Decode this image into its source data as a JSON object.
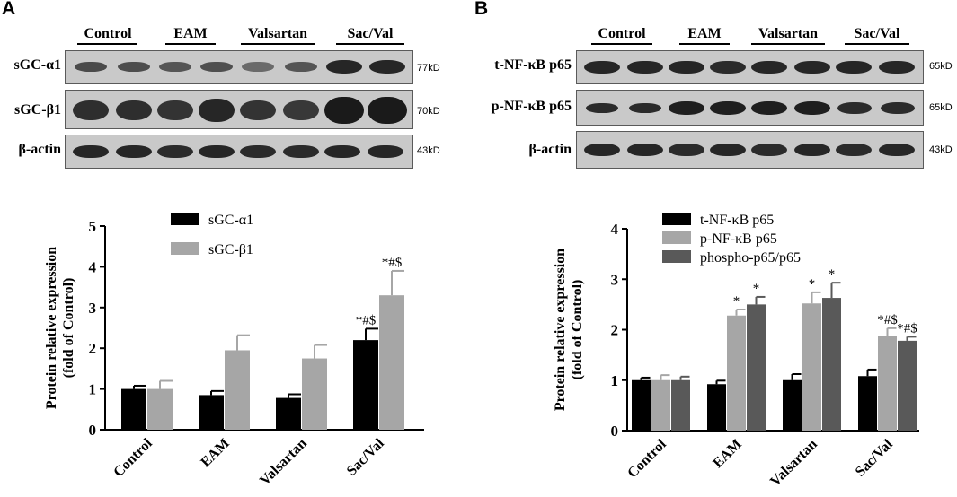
{
  "panels": [
    {
      "letter": "A",
      "blot": {
        "groups": [
          "Control",
          "EAM",
          "Valsartan",
          "Sac/Val"
        ],
        "rows": [
          {
            "label": "sGC-α1",
            "kd": "77kD"
          },
          {
            "label": "sGC-β1",
            "kd": "70kD"
          },
          {
            "label": "β-actin",
            "kd": "43kD"
          }
        ]
      }
    },
    {
      "letter": "B",
      "blot": {
        "groups": [
          "Control",
          "EAM",
          "Valsartan",
          "Sac/Val"
        ],
        "rows": [
          {
            "label": "t-NF-κB p65",
            "kd": "65kD"
          },
          {
            "label": "p-NF-κB p65",
            "kd": "65kD"
          },
          {
            "label": "β-actin",
            "kd": "43kD"
          }
        ]
      }
    }
  ],
  "chart_data": [
    {
      "type": "bar",
      "categories": [
        "Control",
        "EAM",
        "Valsartan",
        "Sac/Val"
      ],
      "ylabel": "Protein relative expression (fold of Control)",
      "ylim": [
        0,
        5
      ],
      "yticks": [
        0,
        1,
        2,
        3,
        4,
        5
      ],
      "legend_position": "top-left",
      "series": [
        {
          "name": "sGC-α1",
          "color": "#000000",
          "values": [
            1.0,
            0.85,
            0.78,
            2.2
          ],
          "errors": [
            0.08,
            0.1,
            0.09,
            0.28
          ],
          "annotations": [
            "",
            "",
            "",
            "*#$"
          ]
        },
        {
          "name": "sGC-β1",
          "color": "#a6a6a6",
          "values": [
            1.0,
            1.95,
            1.75,
            3.3
          ],
          "errors": [
            0.2,
            0.37,
            0.33,
            0.6
          ],
          "annotations": [
            "",
            "",
            "",
            "*#$"
          ]
        }
      ]
    },
    {
      "type": "bar",
      "categories": [
        "Control",
        "EAM",
        "Valsartan",
        "Sac/Val"
      ],
      "ylabel": "Protein relative expression (fold of Control)",
      "ylim": [
        0,
        4
      ],
      "yticks": [
        0,
        1,
        2,
        3,
        4
      ],
      "legend_position": "top-left",
      "series": [
        {
          "name": "t-NF-κB p65",
          "color": "#000000",
          "values": [
            1.0,
            0.92,
            1.0,
            1.08
          ],
          "errors": [
            0.05,
            0.07,
            0.12,
            0.13
          ],
          "annotations": [
            "",
            "",
            "",
            ""
          ]
        },
        {
          "name": "p-NF-κB p65",
          "color": "#a6a6a6",
          "values": [
            1.0,
            2.28,
            2.52,
            1.88
          ],
          "errors": [
            0.1,
            0.12,
            0.22,
            0.15
          ],
          "annotations": [
            "",
            "*",
            "*",
            "*#$"
          ]
        },
        {
          "name": "phospho-p65/p65",
          "color": "#595959",
          "values": [
            1.0,
            2.5,
            2.63,
            1.78
          ],
          "errors": [
            0.07,
            0.15,
            0.3,
            0.08
          ],
          "annotations": [
            "",
            "*",
            "*",
            "*#$"
          ]
        }
      ]
    }
  ]
}
